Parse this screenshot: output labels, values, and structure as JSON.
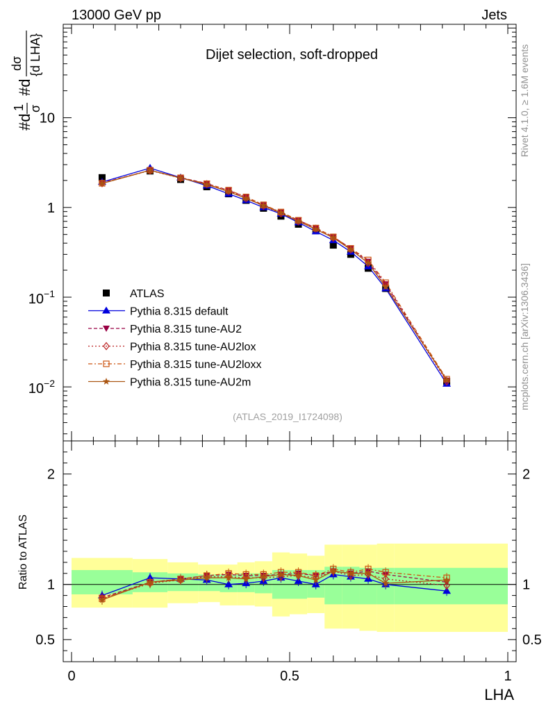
{
  "header": {
    "left": "13000 GeV pp",
    "right": "Jets"
  },
  "side_texts": {
    "rivet": "Rivet 4.1.0, ≥ 1.6M events",
    "mcplots": "mcplots.cern.ch [arXiv:1306.3436]"
  },
  "analysis_label": "(ATLAS_2019_I1724098)",
  "colors": {
    "ATLAS": "#000000",
    "default": "#0000dd",
    "AU2": "#990044",
    "AU2lox": "#bb2222",
    "AU2loxx": "#cc5511",
    "AU2m": "#aa5511",
    "band_inner": "#99ff99",
    "band_outer": "#ffff99"
  },
  "chart_data": [
    {
      "type": "line",
      "panel": "main",
      "title": "Dijet selection, soft-dropped",
      "xlabel": "LHA",
      "ylabel": "#d¹/σ #d dσ/{d LHA}",
      "ylabel_parts": {
        "a": "#d",
        "b": "1",
        "c": "σ",
        "d": "#d",
        "e": "dσ",
        "f": "{d LHA}"
      },
      "yscale": "log",
      "xlim": [
        0,
        1
      ],
      "ylim": [
        0.0025,
        110
      ],
      "y_tick_labels": [
        {
          "value": 10,
          "label": "10"
        },
        {
          "value": 1,
          "label": "1"
        },
        {
          "value": 0.1,
          "base": "10",
          "exp": "−1"
        },
        {
          "value": 0.01,
          "base": "10",
          "exp": "−2"
        }
      ],
      "x": [
        0.07,
        0.18,
        0.25,
        0.31,
        0.36,
        0.4,
        0.44,
        0.48,
        0.52,
        0.56,
        0.6,
        0.64,
        0.68,
        0.72,
        0.86
      ],
      "series": [
        {
          "name": "ATLAS",
          "key": "ATLAS",
          "marker": "square",
          "values": [
            2.15,
            2.55,
            2.05,
            1.7,
            1.42,
            1.2,
            0.98,
            0.8,
            0.65,
            0.55,
            0.38,
            0.3,
            0.21,
            0.125,
            0.0115
          ]
        },
        {
          "name": "Pythia 8.315 default",
          "key": "default",
          "marker": "triangle-up",
          "dash": "",
          "values": [
            1.92,
            2.75,
            2.15,
            1.75,
            1.42,
            1.2,
            1.0,
            0.85,
            0.68,
            0.54,
            0.43,
            0.32,
            0.22,
            0.125,
            0.0108
          ]
        },
        {
          "name": "Pythia 8.315 tune-AU2",
          "key": "AU2",
          "marker": "triangle-down",
          "dash": "5,3",
          "values": [
            1.88,
            2.6,
            2.15,
            1.85,
            1.55,
            1.3,
            1.06,
            0.88,
            0.72,
            0.59,
            0.47,
            0.35,
            0.25,
            0.14,
            0.0118
          ]
        },
        {
          "name": "Pythia 8.315 tune-AU2lox",
          "key": "AU2lox",
          "marker": "diamond-open",
          "dash": "2,3",
          "values": [
            1.86,
            2.58,
            2.12,
            1.82,
            1.52,
            1.27,
            1.04,
            0.86,
            0.7,
            0.58,
            0.46,
            0.34,
            0.24,
            0.135,
            0.0115
          ]
        },
        {
          "name": "Pythia 8.315 tune-AU2loxx",
          "key": "AU2loxx",
          "marker": "square-open",
          "dash": "6,3,2,3",
          "values": [
            1.86,
            2.6,
            2.14,
            1.84,
            1.56,
            1.31,
            1.07,
            0.89,
            0.72,
            0.59,
            0.47,
            0.35,
            0.26,
            0.145,
            0.0122
          ]
        },
        {
          "name": "Pythia 8.315 tune-AU2m",
          "key": "AU2m",
          "marker": "star",
          "dash": "",
          "values": [
            1.85,
            2.6,
            2.13,
            1.8,
            1.5,
            1.26,
            1.05,
            0.87,
            0.7,
            0.57,
            0.46,
            0.34,
            0.24,
            0.13,
            0.012
          ]
        }
      ]
    },
    {
      "type": "line",
      "panel": "ratio",
      "ylabel": "Ratio to ATLAS",
      "xlabel": "LHA",
      "xlim": [
        0,
        1
      ],
      "ylim": [
        0.3,
        2.3
      ],
      "x_tick_labels": [
        "0",
        "0.5",
        "1"
      ],
      "y_tick_labels": [
        "0.5",
        "1",
        "2"
      ],
      "reference_line": 1.0,
      "band_edges": [
        0,
        0.14,
        0.22,
        0.29,
        0.34,
        0.38,
        0.42,
        0.46,
        0.5,
        0.54,
        0.58,
        0.62,
        0.66,
        0.7,
        0.74,
        1.0
      ],
      "band_inner": [
        [
          0.91,
          1.13
        ],
        [
          0.93,
          1.11
        ],
        [
          0.94,
          1.1
        ],
        [
          0.94,
          1.09
        ],
        [
          0.93,
          1.09
        ],
        [
          0.93,
          1.1
        ],
        [
          0.92,
          1.1
        ],
        [
          0.87,
          1.13
        ],
        [
          0.87,
          1.13
        ],
        [
          0.88,
          1.13
        ],
        [
          0.82,
          1.16
        ],
        [
          0.82,
          1.16
        ],
        [
          0.82,
          1.15
        ],
        [
          0.82,
          1.15
        ],
        [
          0.82,
          1.15
        ]
      ],
      "band_outer": [
        [
          0.79,
          1.24
        ],
        [
          0.79,
          1.23
        ],
        [
          0.83,
          1.2
        ],
        [
          0.84,
          1.18
        ],
        [
          0.81,
          1.18
        ],
        [
          0.81,
          1.2
        ],
        [
          0.8,
          1.21
        ],
        [
          0.71,
          1.29
        ],
        [
          0.73,
          1.28
        ],
        [
          0.74,
          1.26
        ],
        [
          0.6,
          1.36
        ],
        [
          0.6,
          1.36
        ],
        [
          0.58,
          1.36
        ],
        [
          0.57,
          1.37
        ],
        [
          0.57,
          1.37
        ]
      ],
      "x": [
        0.07,
        0.18,
        0.25,
        0.31,
        0.36,
        0.4,
        0.44,
        0.48,
        0.52,
        0.56,
        0.6,
        0.64,
        0.68,
        0.72,
        0.86
      ],
      "series": [
        {
          "name": "Pythia 8.315 default",
          "key": "default",
          "marker": "triangle-up",
          "dash": "",
          "values": [
            0.9,
            1.06,
            1.05,
            1.04,
            1.0,
            1.01,
            1.03,
            1.06,
            1.03,
            1.0,
            1.09,
            1.07,
            1.05,
            1.0,
            0.94
          ]
        },
        {
          "name": "Pythia 8.315 tune-AU2",
          "key": "AU2",
          "marker": "triangle-down",
          "dash": "5,3",
          "values": [
            0.88,
            1.02,
            1.05,
            1.08,
            1.09,
            1.08,
            1.08,
            1.09,
            1.1,
            1.08,
            1.12,
            1.1,
            1.12,
            1.09,
            1.02
          ]
        },
        {
          "name": "Pythia 8.315 tune-AU2lox",
          "key": "AU2lox",
          "marker": "diamond-open",
          "dash": "2,3",
          "values": [
            0.87,
            1.01,
            1.04,
            1.07,
            1.07,
            1.06,
            1.06,
            1.07,
            1.08,
            1.06,
            1.12,
            1.08,
            1.09,
            1.05,
            0.99
          ]
        },
        {
          "name": "Pythia 8.315 tune-AU2loxx",
          "key": "AU2loxx",
          "marker": "square-open",
          "dash": "6,3,2,3",
          "values": [
            0.87,
            1.02,
            1.05,
            1.08,
            1.1,
            1.09,
            1.09,
            1.11,
            1.11,
            1.08,
            1.14,
            1.11,
            1.14,
            1.11,
            1.06
          ]
        },
        {
          "name": "Pythia 8.315 tune-AU2m",
          "key": "AU2m",
          "marker": "star",
          "dash": "",
          "values": [
            0.86,
            1.02,
            1.04,
            1.06,
            1.06,
            1.05,
            1.07,
            1.09,
            1.08,
            1.04,
            1.12,
            1.1,
            1.1,
            1.01,
            1.04
          ]
        }
      ]
    }
  ]
}
